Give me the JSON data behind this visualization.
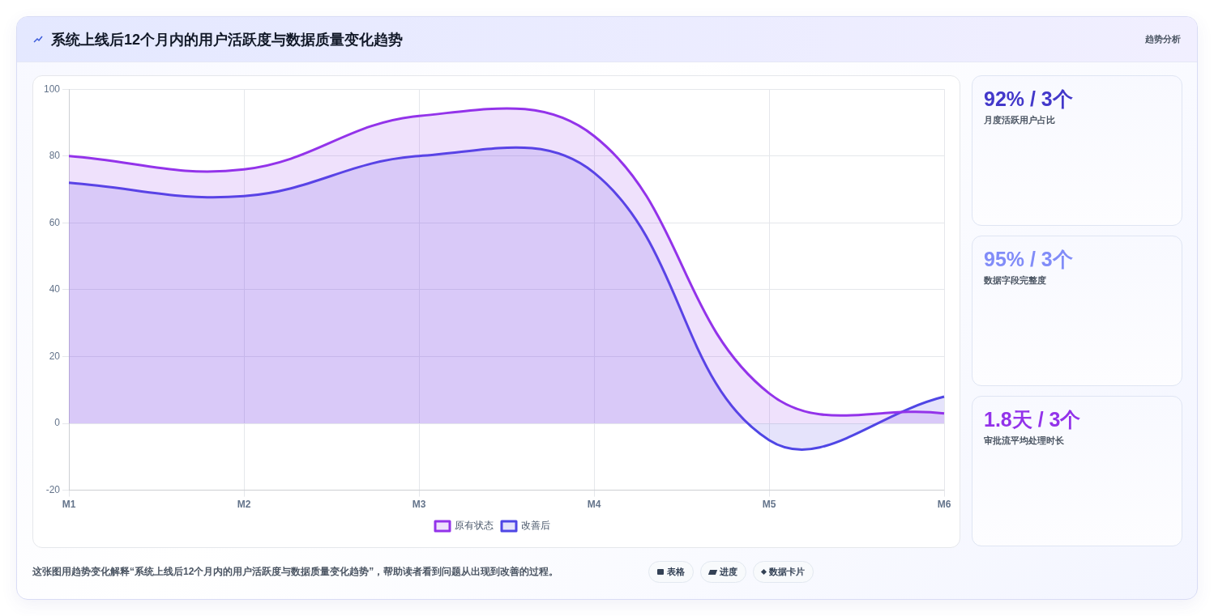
{
  "chart_data": [
    {
      "type": "area",
      "title": "系统上线后12个月内的用户活跃度与数据质量变化趋势",
      "categories": [
        "M1",
        "M2",
        "M3",
        "M4",
        "M5",
        "M6"
      ],
      "series": [
        {
          "name": "原有状态",
          "color": "#9333ea",
          "values": [
            80,
            76,
            92,
            86,
            9,
            3
          ]
        },
        {
          "name": "改善后",
          "color": "#4f46e5",
          "values": [
            72,
            68,
            80,
            75,
            -5,
            8
          ]
        }
      ],
      "ylim": [
        -20,
        100
      ],
      "yticks": [
        -20,
        0,
        20,
        40,
        60,
        80,
        100
      ],
      "grid": true,
      "legend": "bottom",
      "marker": "none",
      "line_style": "solid",
      "annotations": [
        "这张图用趋势变化解释“系统上线后12个月内的用户活跃度与数据质量变化趋势”，帮助读者看到问题从出现到改善的过程。",
        "表格",
        "进度",
        "数据卡片"
      ]
    },
    {
      "type": "other",
      "title": "趋势分析",
      "annotations": [
        "92% / 3个",
        "月度活跃用户占比",
        "95% / 3个",
        "数据字段完整度",
        "1.8天 / 3个",
        "审批流平均处理时长"
      ]
    }
  ]
}
